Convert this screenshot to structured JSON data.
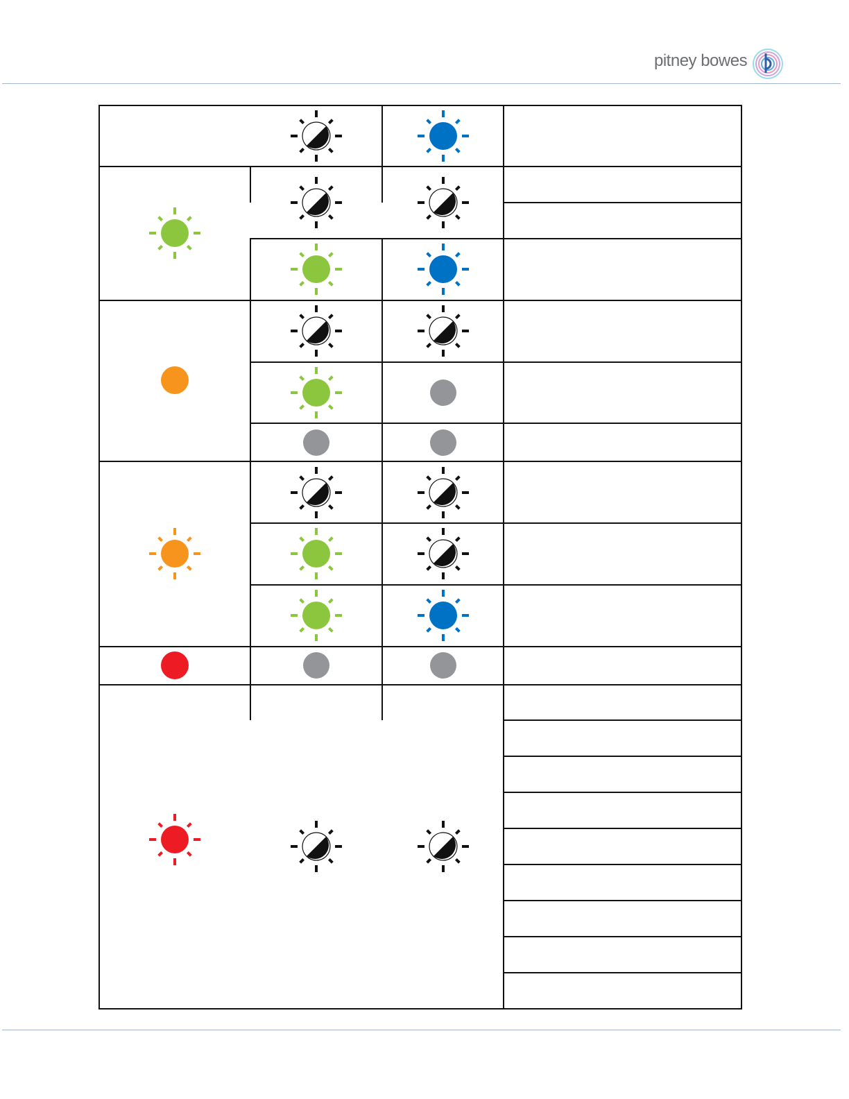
{
  "header": {
    "brand_text": "pitney bowes",
    "rule_color": "#9fb6cc"
  },
  "colors": {
    "green": "#8cc63f",
    "blue": "#0072c6",
    "orange": "#f7941d",
    "red": "#ed1c24",
    "off": "#939598",
    "black": "#111111"
  },
  "table": {
    "legend_states": [
      "blink",
      "solid",
      "half-blink",
      "off"
    ],
    "icons": [
      {
        "row": "header",
        "col": 1,
        "state": "half-blink"
      },
      {
        "row": "header",
        "col": 2,
        "state": "blink",
        "color": "blue"
      },
      {
        "row": "green-blink",
        "col": 0,
        "state": "blink",
        "color": "green"
      },
      {
        "row": "green-blink-a",
        "col": 1,
        "state": "half-blink"
      },
      {
        "row": "green-blink-a",
        "col": 2,
        "state": "half-blink"
      },
      {
        "row": "green-blink-b",
        "col": 1,
        "state": "blink",
        "color": "green"
      },
      {
        "row": "green-blink-b",
        "col": 2,
        "state": "blink",
        "color": "blue"
      },
      {
        "row": "orange-solid",
        "col": 0,
        "state": "solid",
        "color": "orange"
      },
      {
        "row": "orange-solid-a",
        "col": 1,
        "state": "half-blink"
      },
      {
        "row": "orange-solid-a",
        "col": 2,
        "state": "half-blink"
      },
      {
        "row": "orange-solid-b",
        "col": 1,
        "state": "blink",
        "color": "green"
      },
      {
        "row": "orange-solid-b",
        "col": 2,
        "state": "off"
      },
      {
        "row": "orange-solid-c",
        "col": 1,
        "state": "off"
      },
      {
        "row": "orange-solid-c",
        "col": 2,
        "state": "off"
      },
      {
        "row": "orange-blink",
        "col": 0,
        "state": "blink",
        "color": "orange"
      },
      {
        "row": "orange-blink-a",
        "col": 1,
        "state": "half-blink"
      },
      {
        "row": "orange-blink-a",
        "col": 2,
        "state": "half-blink"
      },
      {
        "row": "orange-blink-b",
        "col": 1,
        "state": "blink",
        "color": "green"
      },
      {
        "row": "orange-blink-b",
        "col": 2,
        "state": "half-blink"
      },
      {
        "row": "orange-blink-c",
        "col": 1,
        "state": "blink",
        "color": "green"
      },
      {
        "row": "orange-blink-c",
        "col": 2,
        "state": "blink",
        "color": "blue"
      },
      {
        "row": "red-solid",
        "col": 0,
        "state": "solid",
        "color": "red"
      },
      {
        "row": "red-solid",
        "col": 1,
        "state": "off"
      },
      {
        "row": "red-solid",
        "col": 2,
        "state": "off"
      },
      {
        "row": "red-blink",
        "col": 0,
        "state": "blink",
        "color": "red"
      },
      {
        "row": "red-blink",
        "col": 1,
        "state": "half-blink"
      },
      {
        "row": "red-blink",
        "col": 2,
        "state": "half-blink"
      }
    ]
  }
}
